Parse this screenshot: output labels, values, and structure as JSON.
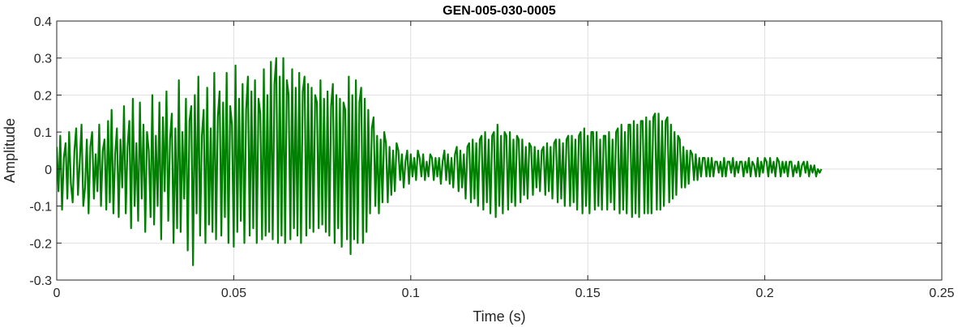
{
  "chart_data": {
    "type": "line",
    "title": "GEN-005-030-0005",
    "xlabel": "Time (s)",
    "ylabel": "Amplitude",
    "xlim": [
      0,
      0.25
    ],
    "ylim": [
      -0.3,
      0.4
    ],
    "xticks": [
      0,
      0.05,
      0.1,
      0.15,
      0.2,
      0.25
    ],
    "xtick_labels": [
      "0",
      "0.05",
      "0.1",
      "0.15",
      "0.2",
      "0.25"
    ],
    "yticks": [
      -0.3,
      -0.2,
      -0.1,
      0,
      0.1,
      0.2,
      0.3,
      0.4
    ],
    "ytick_labels": [
      "-0.3",
      "-0.2",
      "-0.1",
      "0",
      "0.1",
      "0.2",
      "0.3",
      "0.4"
    ],
    "grid": true,
    "series": [
      {
        "color": "#008000",
        "x_start": 0,
        "x_end": 0.221,
        "sample_step": 0.0005,
        "values": [
          0.06,
          -0.06,
          0.09,
          -0.11,
          0.03,
          0.07,
          -0.08,
          0.1,
          -0.04,
          -0.09,
          0.05,
          0.11,
          -0.07,
          0.02,
          0.12,
          -0.1,
          -0.05,
          0.08,
          -0.12,
          0.06,
          0.1,
          -0.08,
          0.04,
          -0.06,
          0.12,
          -0.1,
          0.05,
          0.08,
          -0.11,
          0.13,
          -0.09,
          0.16,
          -0.12,
          0.04,
          0.11,
          -0.13,
          0.08,
          -0.05,
          0.17,
          -0.12,
          0.06,
          0.13,
          -0.16,
          0.19,
          -0.1,
          0.07,
          -0.14,
          0.18,
          -0.08,
          0.12,
          -0.17,
          0.1,
          0.05,
          -0.13,
          0.2,
          -0.15,
          0.09,
          -0.1,
          0.18,
          -0.19,
          0.14,
          -0.06,
          0.21,
          -0.14,
          0.08,
          0.15,
          -0.2,
          0.11,
          -0.16,
          0.24,
          -0.17,
          0.1,
          -0.08,
          0.19,
          -0.22,
          0.13,
          0.17,
          -0.26,
          0.2,
          -0.12,
          0.25,
          -0.18,
          0.09,
          0.16,
          -0.2,
          0.22,
          -0.15,
          0.11,
          -0.17,
          0.26,
          -0.19,
          0.14,
          0.21,
          -0.18,
          0.18,
          -0.13,
          0.26,
          -0.2,
          0.17,
          0.12,
          -0.21,
          0.28,
          -0.17,
          0.19,
          -0.14,
          0.23,
          -0.2,
          0.16,
          0.25,
          -0.18,
          0.21,
          -0.16,
          0.24,
          -0.2,
          0.19,
          0.15,
          -0.19,
          0.27,
          -0.18,
          0.2,
          -0.17,
          0.29,
          -0.19,
          0.23,
          0.3,
          -0.2,
          0.25,
          -0.18,
          0.3,
          -0.2,
          0.24,
          0.2,
          -0.19,
          0.27,
          -0.16,
          0.22,
          -0.18,
          0.26,
          -0.2,
          0.21,
          0.25,
          -0.18,
          0.23,
          -0.16,
          0.22,
          -0.17,
          0.2,
          0.18,
          -0.16,
          0.24,
          -0.15,
          0.19,
          -0.17,
          0.21,
          -0.18,
          0.17,
          0.23,
          -0.2,
          0.2,
          -0.16,
          0.19,
          -0.21,
          0.18,
          0.16,
          -0.19,
          0.25,
          -0.23,
          0.2,
          -0.19,
          0.24,
          -0.2,
          0.18,
          0.22,
          -0.2,
          0.19,
          -0.17,
          0.16,
          -0.12,
          0.11,
          0.14,
          -0.1,
          0.09,
          -0.12,
          0.08,
          -0.09,
          0.1,
          0.07,
          -0.09,
          0.06,
          -0.07,
          0.05,
          -0.06,
          0.07,
          0.05,
          -0.03,
          0.04,
          -0.05,
          0.02,
          0.05,
          -0.04,
          0.04,
          -0.02,
          0.03,
          -0.03,
          0.05,
          0.03,
          -0.02,
          0.04,
          -0.03,
          0.02,
          -0.02,
          0.04,
          0.03,
          -0.03,
          0.03,
          -0.02,
          0.03,
          -0.04,
          0.02,
          0.05,
          -0.03,
          0.04,
          -0.04,
          0.03,
          -0.05,
          0.04,
          0.06,
          -0.06,
          0.05,
          -0.05,
          0.04,
          -0.08,
          0.06,
          0.07,
          -0.09,
          0.08,
          -0.08,
          0.07,
          -0.1,
          0.08,
          0.09,
          -0.11,
          0.1,
          -0.09,
          0.08,
          -0.12,
          0.09,
          0.1,
          -0.13,
          0.12,
          -0.1,
          0.09,
          -0.12,
          0.1,
          0.09,
          -0.11,
          0.1,
          -0.09,
          0.08,
          -0.1,
          0.09,
          0.08,
          -0.09,
          0.08,
          -0.07,
          0.06,
          -0.08,
          0.07,
          0.06,
          -0.07,
          0.06,
          -0.05,
          0.05,
          -0.06,
          0.05,
          0.06,
          -0.07,
          0.07,
          -0.06,
          0.06,
          -0.08,
          0.07,
          0.08,
          -0.09,
          0.08,
          -0.08,
          0.07,
          -0.1,
          0.08,
          0.09,
          -0.1,
          0.09,
          -0.09,
          0.08,
          -0.11,
          0.09,
          0.1,
          -0.12,
          0.11,
          -0.1,
          0.09,
          -0.12,
          0.1,
          0.1,
          -0.11,
          0.1,
          -0.1,
          0.08,
          -0.11,
          0.09,
          0.09,
          -0.11,
          0.1,
          -0.09,
          0.08,
          -0.11,
          0.1,
          0.11,
          -0.12,
          0.12,
          -0.11,
          0.1,
          -0.12,
          0.12,
          0.12,
          -0.13,
          0.13,
          -0.12,
          0.12,
          -0.13,
          0.13,
          0.13,
          -0.12,
          0.14,
          -0.12,
          0.13,
          -0.12,
          0.14,
          0.15,
          -0.11,
          0.15,
          -0.11,
          0.13,
          -0.1,
          0.13,
          0.14,
          -0.09,
          0.12,
          -0.08,
          0.1,
          -0.07,
          0.09,
          0.08,
          -0.05,
          0.06,
          -0.05,
          0.05,
          -0.04,
          0.05,
          0.04,
          -0.03,
          0.04,
          -0.03,
          0.03,
          -0.02,
          0.03,
          0.03,
          -0.02,
          0.03,
          -0.02,
          0.03,
          -0.02,
          0.02,
          0.02,
          -0.01,
          0.02,
          -0.02,
          0.03,
          -0.02,
          0.02,
          0.02,
          -0.01,
          0.03,
          -0.02,
          0.02,
          -0.01,
          0.02,
          0.02,
          -0.02,
          0.02,
          -0.01,
          0.03,
          -0.02,
          0.02,
          0.01,
          -0.02,
          0.03,
          -0.02,
          0.02,
          -0.01,
          0.03,
          0.02,
          -0.02,
          0.03,
          -0.01,
          0.02,
          -0.02,
          0.03,
          0.02,
          -0.02,
          0.02,
          -0.01,
          0.02,
          -0.02,
          0.02,
          0.02,
          -0.02,
          0.01,
          -0.01,
          0.02,
          -0.02,
          0.01,
          0.02,
          -0.01,
          0.02,
          -0.02,
          0.01,
          -0.01,
          0.01,
          -0.02,
          0.0,
          -0.01,
          0.0
        ]
      }
    ]
  }
}
